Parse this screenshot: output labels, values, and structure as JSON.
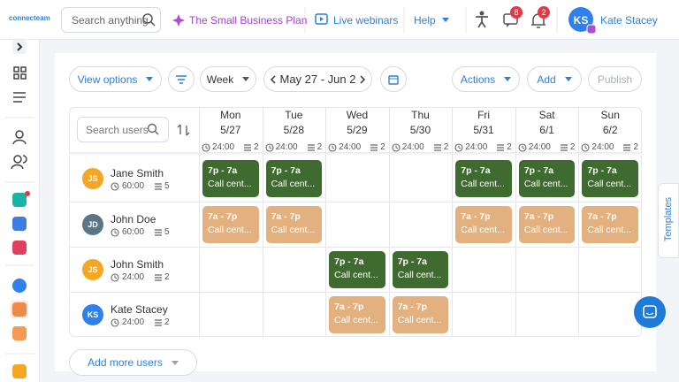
{
  "header": {
    "logo": "connecteam",
    "search_placeholder": "Search anything",
    "plan": "The Small Business Plan",
    "webinars": "Live webinars",
    "help": "Help",
    "chat_badge": "8",
    "notif_badge": "2",
    "user_initials": "KS",
    "user_name": "Kate Stacey"
  },
  "toolbar": {
    "view_options": "View options",
    "period": "Week",
    "date_range": "May 27 - Jun 2",
    "actions": "Actions",
    "add": "Add",
    "publish": "Publish"
  },
  "schedule": {
    "search_placeholder": "Search users",
    "days": [
      {
        "name": "Mon",
        "date": "5/27",
        "hours": "24:00",
        "shifts": "2"
      },
      {
        "name": "Tue",
        "date": "5/28",
        "hours": "24:00",
        "shifts": "2"
      },
      {
        "name": "Wed",
        "date": "5/29",
        "hours": "24:00",
        "shifts": "2"
      },
      {
        "name": "Thu",
        "date": "5/30",
        "hours": "24:00",
        "shifts": "2"
      },
      {
        "name": "Fri",
        "date": "5/31",
        "hours": "24:00",
        "shifts": "2"
      },
      {
        "name": "Sat",
        "date": "6/1",
        "hours": "24:00",
        "shifts": "2"
      },
      {
        "name": "Sun",
        "date": "6/2",
        "hours": "24:00",
        "shifts": "2"
      }
    ],
    "users": [
      {
        "initials": "JS",
        "name": "Jane Smith",
        "hours": "60:00",
        "shifts": "5",
        "color": "#f5a623",
        "cells": [
          {
            "time": "7p - 7a",
            "role": "Call cent...",
            "color": "#3f6b30"
          },
          {
            "time": "7p - 7a",
            "role": "Call cent...",
            "color": "#3f6b30"
          },
          null,
          null,
          {
            "time": "7p - 7a",
            "role": "Call cent...",
            "color": "#3f6b30"
          },
          {
            "time": "7p - 7a",
            "role": "Call cent...",
            "color": "#3f6b30"
          },
          {
            "time": "7p - 7a",
            "role": "Call cent...",
            "color": "#3f6b30"
          }
        ]
      },
      {
        "initials": "JD",
        "name": "John Doe",
        "hours": "60:00",
        "shifts": "5",
        "color": "#5b7584",
        "cells": [
          {
            "time": "7a - 7p",
            "role": "Call cent...",
            "color": "#e2b17f"
          },
          {
            "time": "7a - 7p",
            "role": "Call cent...",
            "color": "#e2b17f"
          },
          null,
          null,
          {
            "time": "7a - 7p",
            "role": "Call cent...",
            "color": "#e2b17f"
          },
          {
            "time": "7a - 7p",
            "role": "Call cent...",
            "color": "#e2b17f"
          },
          {
            "time": "7a - 7p",
            "role": "Call cent...",
            "color": "#e2b17f"
          }
        ]
      },
      {
        "initials": "JS",
        "name": "John Smith",
        "hours": "24:00",
        "shifts": "2",
        "color": "#f5a623",
        "cells": [
          null,
          null,
          {
            "time": "7p - 7a",
            "role": "Call cent...",
            "color": "#3f6b30"
          },
          {
            "time": "7p - 7a",
            "role": "Call cent...",
            "color": "#3f6b30"
          },
          null,
          null,
          null
        ]
      },
      {
        "initials": "KS",
        "name": "Kate Stacey",
        "hours": "24:00",
        "shifts": "2",
        "color": "#2f80ed",
        "cells": [
          null,
          null,
          {
            "time": "7a - 7p",
            "role": "Call cent...",
            "color": "#e2b17f"
          },
          {
            "time": "7a - 7p",
            "role": "Call cent...",
            "color": "#e2b17f"
          },
          null,
          null,
          null
        ]
      }
    ]
  },
  "add_more_users": "Add more users",
  "templates": "Templates"
}
